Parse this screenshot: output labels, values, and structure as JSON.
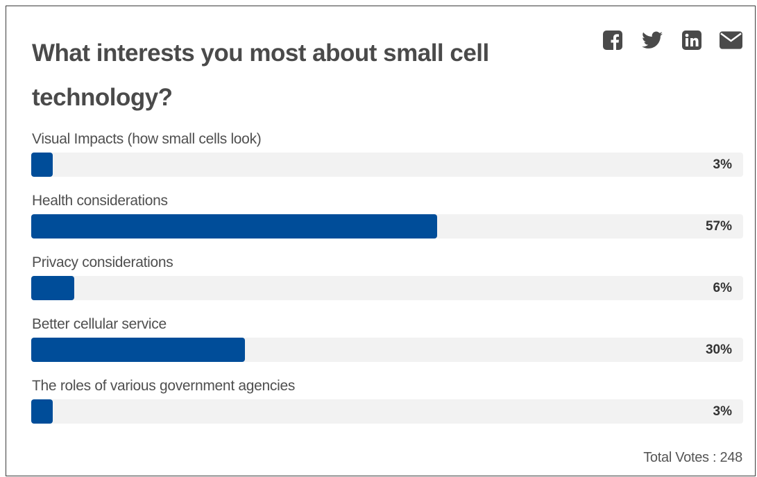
{
  "poll": {
    "question": "What interests you most about small cell technology?",
    "options": [
      {
        "label": "Visual Impacts (how small cells look)",
        "percent_text": "3%",
        "percent": 3
      },
      {
        "label": "Health considerations",
        "percent_text": "57%",
        "percent": 57
      },
      {
        "label": "Privacy considerations",
        "percent_text": "6%",
        "percent": 6
      },
      {
        "label": "Better cellular service",
        "percent_text": "30%",
        "percent": 30
      },
      {
        "label": "The roles of various government agencies",
        "percent_text": "3%",
        "percent": 3
      }
    ],
    "total_votes": "Total Votes : 248",
    "bar_color": "#004d99",
    "track_color": "#f2f2f2"
  },
  "share": {
    "icons": [
      "facebook-icon",
      "twitter-icon",
      "linkedin-icon",
      "email-icon"
    ],
    "icon_color": "#4a4a4a"
  }
}
